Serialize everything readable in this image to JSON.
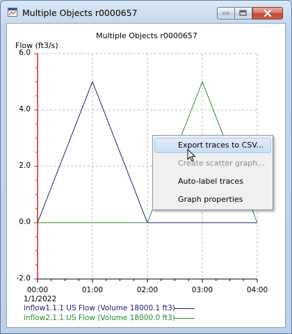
{
  "window": {
    "title": "Multiple Objects r0000657"
  },
  "chart_data": {
    "type": "line",
    "title": "Multiple Objects r0000657",
    "ylabel": "Flow (ft3/s)",
    "xlabel": "",
    "ylim": [
      -2.0,
      6.0
    ],
    "xlim": [
      0,
      4
    ],
    "yticks": [
      "-2.0",
      "0.0",
      "2.0",
      "4.0",
      "6.0"
    ],
    "ytick_values": [
      -2,
      0,
      2,
      4,
      6
    ],
    "xticks": [
      "00:00",
      "01:00",
      "02:00",
      "03:00",
      "04:00"
    ],
    "xtick_values": [
      0,
      1,
      2,
      3,
      4
    ],
    "date_label": "1/1/2022",
    "grid": true,
    "series": [
      {
        "name": "inflow1.1.1 US Flow (Volume 18000.1 ft3)",
        "color": "#1c1c78",
        "x": [
          0,
          1,
          2,
          3,
          4
        ],
        "y": [
          0,
          5.0,
          0,
          0,
          0
        ]
      },
      {
        "name": "inflow2.1.1 US Flow (Volume 18000.0 ft3)",
        "color": "#2a8a2a",
        "x": [
          0,
          1,
          2,
          3,
          4
        ],
        "y": [
          0,
          0,
          0,
          5.0,
          0
        ]
      }
    ]
  },
  "context_menu": {
    "items": [
      {
        "label": "Export traces to CSV...",
        "highlighted": true,
        "enabled": true
      },
      {
        "label": "Create scatter graph...",
        "highlighted": false,
        "enabled": false
      },
      {
        "label": "Auto-label traces",
        "highlighted": false,
        "enabled": true
      },
      {
        "label": "Graph properties",
        "highlighted": false,
        "enabled": true
      }
    ]
  }
}
